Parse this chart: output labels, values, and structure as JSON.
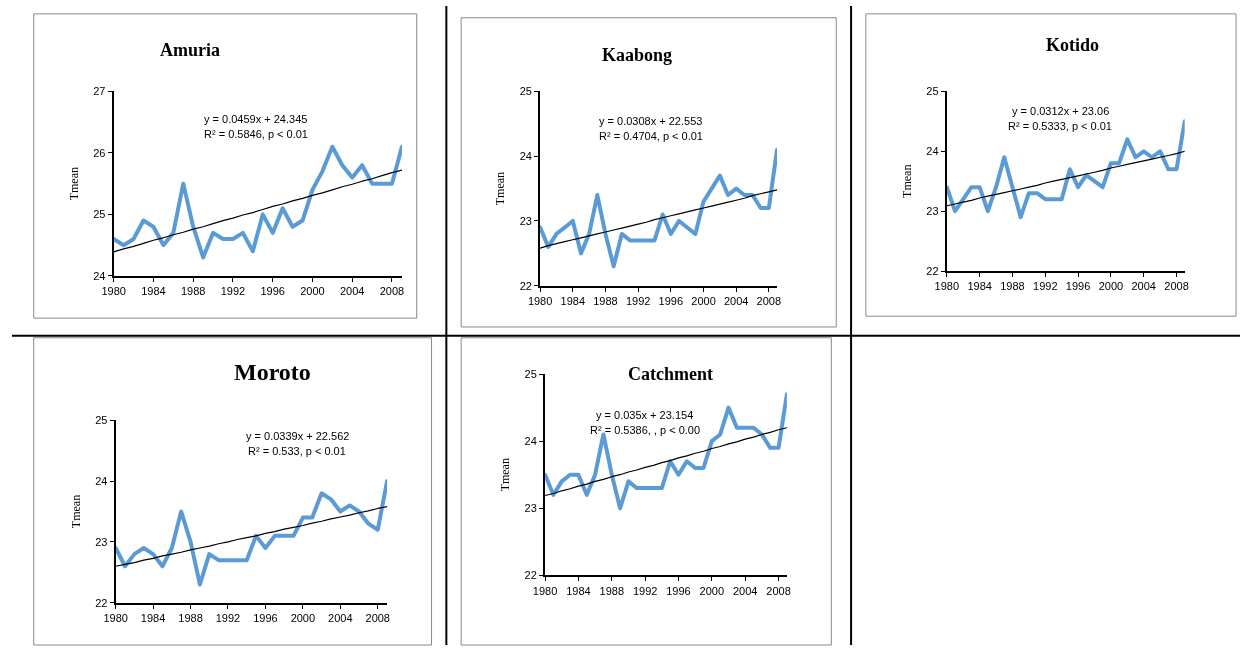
{
  "chart_data": [
    {
      "type": "line",
      "title": "Amuria",
      "ylabel": "Tmean",
      "annotations": [
        "y = 0.0459x + 24.345",
        "R² = 0.5846, p < 0.01"
      ],
      "x": [
        1980,
        1981,
        1982,
        1983,
        1984,
        1985,
        1986,
        1987,
        1988,
        1989,
        1990,
        1991,
        1992,
        1993,
        1994,
        1995,
        1996,
        1997,
        1998,
        1999,
        2000,
        2001,
        2002,
        2003,
        2004,
        2005,
        2006,
        2007,
        2008,
        2009
      ],
      "xlim": [
        1980,
        2009
      ],
      "xticks": [
        1980,
        1984,
        1988,
        1992,
        1996,
        2000,
        2004,
        2008
      ],
      "ylim": [
        24,
        27
      ],
      "yticks": [
        24,
        25,
        26,
        27
      ],
      "marker": "none",
      "series": [
        {
          "color": "#5b9bd5",
          "values": [
            24.6,
            24.5,
            24.6,
            24.9,
            24.8,
            24.5,
            24.7,
            25.5,
            24.8,
            24.3,
            24.7,
            24.6,
            24.6,
            24.7,
            24.4,
            25.0,
            24.7,
            25.1,
            24.8,
            24.9,
            25.4,
            25.7,
            26.1,
            25.8,
            25.6,
            25.8,
            25.5,
            25.5,
            25.5,
            26.1
          ]
        },
        {
          "type": "line",
          "color": "#000000",
          "values": [
            24.39,
            24.44,
            24.48,
            24.53,
            24.58,
            24.62,
            24.67,
            24.71,
            24.76,
            24.8,
            24.85,
            24.9,
            24.94,
            24.99,
            25.03,
            25.08,
            25.13,
            25.17,
            25.22,
            25.26,
            25.31,
            25.35,
            25.4,
            25.45,
            25.49,
            25.54,
            25.58,
            25.63,
            25.68,
            25.72
          ]
        }
      ]
    },
    {
      "type": "line",
      "title": "Kaabong",
      "ylabel": "Tmean",
      "annotations": [
        "y = 0.0308x + 22.553",
        "R² = 0.4704, p < 0.01"
      ],
      "x": [
        1980,
        1981,
        1982,
        1983,
        1984,
        1985,
        1986,
        1987,
        1988,
        1989,
        1990,
        1991,
        1992,
        1993,
        1994,
        1995,
        1996,
        1997,
        1998,
        1999,
        2000,
        2001,
        2002,
        2003,
        2004,
        2005,
        2006,
        2007,
        2008,
        2009
      ],
      "xlim": [
        1980,
        2009
      ],
      "xticks": [
        1980,
        1984,
        1988,
        1992,
        1996,
        2000,
        2004,
        2008
      ],
      "ylim": [
        22,
        25
      ],
      "yticks": [
        22,
        23,
        24,
        25
      ],
      "marker": "none",
      "series": [
        {
          "color": "#5b9bd5",
          "values": [
            22.9,
            22.6,
            22.8,
            22.9,
            23.0,
            22.5,
            22.8,
            23.4,
            22.8,
            22.3,
            22.8,
            22.7,
            22.7,
            22.7,
            22.7,
            23.1,
            22.8,
            23.0,
            22.9,
            22.8,
            23.3,
            23.5,
            23.7,
            23.4,
            23.5,
            23.4,
            23.4,
            23.2,
            23.2,
            24.1
          ]
        },
        {
          "type": "line",
          "color": "#000000",
          "values": [
            22.58,
            22.62,
            22.65,
            22.68,
            22.71,
            22.74,
            22.77,
            22.8,
            22.83,
            22.86,
            22.89,
            22.92,
            22.95,
            22.98,
            23.02,
            23.05,
            23.08,
            23.11,
            23.14,
            23.17,
            23.2,
            23.23,
            23.26,
            23.29,
            23.32,
            23.35,
            23.39,
            23.42,
            23.45,
            23.48
          ]
        }
      ]
    },
    {
      "type": "line",
      "title": "Kotido",
      "ylabel": "Tmean",
      "annotations": [
        "y = 0.0312x + 23.06",
        "R² = 0.5333, p < 0.01"
      ],
      "x": [
        1980,
        1981,
        1982,
        1983,
        1984,
        1985,
        1986,
        1987,
        1988,
        1989,
        1990,
        1991,
        1992,
        1993,
        1994,
        1995,
        1996,
        1997,
        1998,
        1999,
        2000,
        2001,
        2002,
        2003,
        2004,
        2005,
        2006,
        2007,
        2008,
        2009
      ],
      "xlim": [
        1980,
        2009
      ],
      "xticks": [
        1980,
        1984,
        1988,
        1992,
        1996,
        2000,
        2004,
        2008
      ],
      "ylim": [
        22,
        25
      ],
      "yticks": [
        22,
        23,
        24,
        25
      ],
      "marker": "none",
      "series": [
        {
          "color": "#5b9bd5",
          "values": [
            23.4,
            23.0,
            23.2,
            23.4,
            23.4,
            23.0,
            23.4,
            23.9,
            23.4,
            22.9,
            23.3,
            23.3,
            23.2,
            23.2,
            23.2,
            23.7,
            23.4,
            23.6,
            23.5,
            23.4,
            23.8,
            23.8,
            24.2,
            23.9,
            24.0,
            23.9,
            24.0,
            23.7,
            23.7,
            24.5
          ]
        },
        {
          "type": "line",
          "color": "#000000",
          "values": [
            23.09,
            23.12,
            23.15,
            23.18,
            23.22,
            23.25,
            23.28,
            23.31,
            23.34,
            23.37,
            23.4,
            23.43,
            23.47,
            23.5,
            23.53,
            23.56,
            23.59,
            23.62,
            23.65,
            23.68,
            23.72,
            23.75,
            23.78,
            23.81,
            23.84,
            23.87,
            23.9,
            23.93,
            23.96,
            24.0
          ]
        }
      ]
    },
    {
      "type": "line",
      "title": "Moroto",
      "ylabel": "Tmean",
      "annotations": [
        "y = 0.0339x + 22.562",
        "R² = 0.533, p < 0.01"
      ],
      "x": [
        1980,
        1981,
        1982,
        1983,
        1984,
        1985,
        1986,
        1987,
        1988,
        1989,
        1990,
        1991,
        1992,
        1993,
        1994,
        1995,
        1996,
        1997,
        1998,
        1999,
        2000,
        2001,
        2002,
        2003,
        2004,
        2005,
        2006,
        2007,
        2008,
        2009
      ],
      "xlim": [
        1980,
        2009
      ],
      "xticks": [
        1980,
        1984,
        1988,
        1992,
        1996,
        2000,
        2004,
        2008
      ],
      "ylim": [
        22,
        25
      ],
      "yticks": [
        22,
        23,
        24,
        25
      ],
      "marker": "none",
      "series": [
        {
          "color": "#5b9bd5",
          "values": [
            22.9,
            22.6,
            22.8,
            22.9,
            22.8,
            22.6,
            22.9,
            23.5,
            23.0,
            22.3,
            22.8,
            22.7,
            22.7,
            22.7,
            22.7,
            23.1,
            22.9,
            23.1,
            23.1,
            23.1,
            23.4,
            23.4,
            23.8,
            23.7,
            23.5,
            23.6,
            23.5,
            23.3,
            23.2,
            24.0
          ]
        },
        {
          "type": "line",
          "color": "#000000",
          "values": [
            22.6,
            22.63,
            22.66,
            22.7,
            22.73,
            22.77,
            22.8,
            22.83,
            22.87,
            22.9,
            22.93,
            22.97,
            23.0,
            23.04,
            23.07,
            23.1,
            23.14,
            23.17,
            23.21,
            23.24,
            23.27,
            23.31,
            23.34,
            23.38,
            23.41,
            23.44,
            23.48,
            23.51,
            23.55,
            23.58
          ]
        }
      ]
    },
    {
      "type": "line",
      "title": "Catchment",
      "ylabel": "Tmean",
      "annotations": [
        "y = 0.035x + 23.154",
        "R² = 0.5386, , p < 0.00"
      ],
      "x": [
        1980,
        1981,
        1982,
        1983,
        1984,
        1985,
        1986,
        1987,
        1988,
        1989,
        1990,
        1991,
        1992,
        1993,
        1994,
        1995,
        1996,
        1997,
        1998,
        1999,
        2000,
        2001,
        2002,
        2003,
        2004,
        2005,
        2006,
        2007,
        2008,
        2009
      ],
      "xlim": [
        1980,
        2009
      ],
      "xticks": [
        1980,
        1984,
        1988,
        1992,
        1996,
        2000,
        2004,
        2008
      ],
      "ylim": [
        22,
        25
      ],
      "yticks": [
        22,
        23,
        24,
        25
      ],
      "marker": "none",
      "series": [
        {
          "color": "#5b9bd5",
          "values": [
            23.5,
            23.2,
            23.4,
            23.5,
            23.5,
            23.2,
            23.5,
            24.1,
            23.5,
            23.0,
            23.4,
            23.3,
            23.3,
            23.3,
            23.3,
            23.7,
            23.5,
            23.7,
            23.6,
            23.6,
            24.0,
            24.1,
            24.5,
            24.2,
            24.2,
            24.2,
            24.1,
            23.9,
            23.9,
            24.7
          ]
        },
        {
          "type": "line",
          "color": "#000000",
          "values": [
            23.19,
            23.22,
            23.26,
            23.29,
            23.33,
            23.36,
            23.4,
            23.43,
            23.47,
            23.5,
            23.54,
            23.57,
            23.61,
            23.64,
            23.68,
            23.71,
            23.75,
            23.78,
            23.82,
            23.85,
            23.89,
            23.92,
            23.96,
            23.99,
            24.03,
            24.06,
            24.1,
            24.13,
            24.17,
            24.2
          ]
        }
      ]
    }
  ]
}
